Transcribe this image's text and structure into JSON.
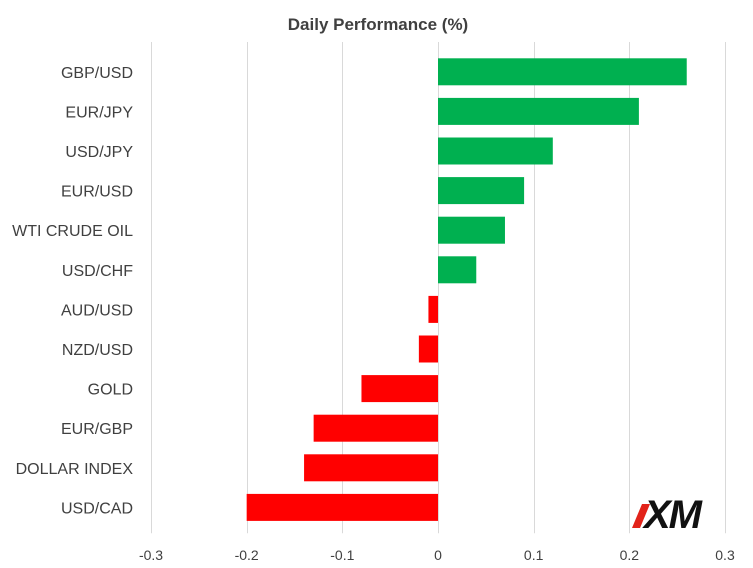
{
  "chart_data": {
    "type": "bar",
    "orientation": "horizontal",
    "title": "Daily Performance (%)",
    "categories": [
      "GBP/USD",
      "EUR/JPY",
      "USD/JPY",
      "EUR/USD",
      "WTI CRUDE OIL",
      "USD/CHF",
      "AUD/USD",
      "NZD/USD",
      "GOLD",
      "EUR/GBP",
      "DOLLAR INDEX",
      "USD/CAD"
    ],
    "values": [
      0.26,
      0.21,
      0.12,
      0.09,
      0.07,
      0.04,
      -0.01,
      -0.02,
      -0.08,
      -0.13,
      -0.14,
      -0.2
    ],
    "xlim": [
      -0.3,
      0.3
    ],
    "xticks": [
      -0.3,
      -0.2,
      -0.1,
      0,
      0.1,
      0.2,
      0.3
    ],
    "xtick_labels": [
      "-0.3",
      "-0.2",
      "-0.1",
      "0",
      "0.1",
      "0.2",
      "0.3"
    ],
    "grid": true,
    "colors": {
      "positive": "#00b050",
      "negative": "#ff0000",
      "grid": "#d9d9d9",
      "text": "#404040"
    }
  },
  "watermark": {
    "logo_text": "XM",
    "logo_accent": "#e2231a"
  }
}
